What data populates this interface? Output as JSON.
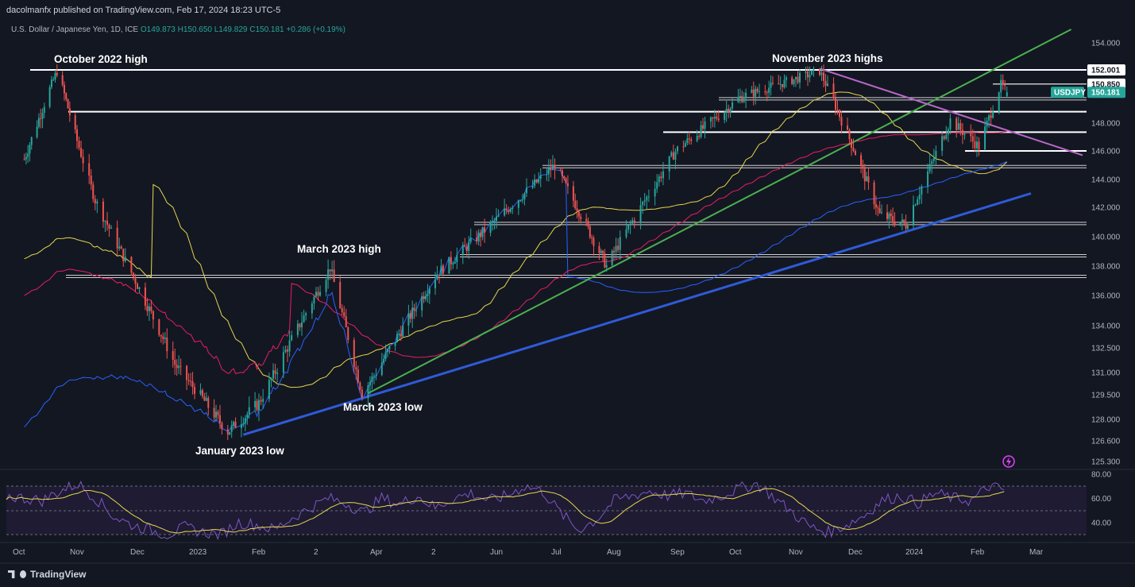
{
  "header": {
    "published": "dacolmanfx published on TradingView.com, Feb 17, 2024 18:23 UTC-5",
    "symbol_line": "U.S. Dollar / Japanese Yen, 1D, ICE",
    "ohlc": {
      "o": "O149.873",
      "h": "H150.650",
      "l": "L149.829",
      "c": "C150.181",
      "chg": "+0.286 (+0.19%)"
    }
  },
  "footer": {
    "brand": "TradingView"
  },
  "colors": {
    "background": "#131722",
    "up": "#26a69a",
    "down": "#ef5350",
    "ma_fast": "#e6d64c",
    "ma_mid": "#e91e63",
    "ma_slow": "#2962ff",
    "trend_green": "#4caf50",
    "trend_blue": "#2f5bd8",
    "trend_purple": "#ba68c8",
    "rsi": "#7e57c2",
    "rsi_ma": "#e6d64c"
  },
  "chart_data": [
    {
      "type": "candlestick",
      "title": "U.S. Dollar / Japanese Yen, 1D, ICE",
      "symbol": "USDJPY",
      "last_price": "150.181",
      "y_ticks": [
        "154.000",
        "152.000",
        "150.000",
        "148.000",
        "146.000",
        "144.000",
        "142.000",
        "140.000",
        "138.000",
        "136.000",
        "134.000",
        "132.500",
        "131.000",
        "129.500",
        "128.000",
        "126.600",
        "125.300"
      ],
      "ylim": [
        125.3,
        154.0
      ],
      "price_labels": [
        "152.001",
        "150.850"
      ],
      "x_ticks": [
        "Oct",
        "Nov",
        "Dec",
        "2023",
        "Feb",
        "2",
        "Apr",
        "2",
        "Jun",
        "Jul",
        "Aug",
        "Sep",
        "Oct",
        "Nov",
        "Dec",
        "2024",
        "Feb",
        "Mar"
      ],
      "annotations": [
        "October 2022 high",
        "November 2023 highs",
        "March 2023 high",
        "March 2023 low",
        "January 2023 low"
      ],
      "anchor_points": [
        {
          "date": "2022-10-01",
          "price": 144.7
        },
        {
          "date": "2022-10-21",
          "price": 151.9
        },
        {
          "date": "2022-11-10",
          "price": 142.5
        },
        {
          "date": "2022-12-20",
          "price": 131.5
        },
        {
          "date": "2023-01-16",
          "price": 127.2
        },
        {
          "date": "2023-02-01",
          "price": 129.0
        },
        {
          "date": "2023-03-08",
          "price": 137.9
        },
        {
          "date": "2023-03-24",
          "price": 129.6
        },
        {
          "date": "2023-05-02",
          "price": 137.5
        },
        {
          "date": "2023-05-30",
          "price": 140.9
        },
        {
          "date": "2023-06-30",
          "price": 145.0
        },
        {
          "date": "2023-07-28",
          "price": 138.0
        },
        {
          "date": "2023-08-31",
          "price": 146.0
        },
        {
          "date": "2023-10-03",
          "price": 149.8
        },
        {
          "date": "2023-11-13",
          "price": 151.9
        },
        {
          "date": "2023-12-14",
          "price": 141.5
        },
        {
          "date": "2023-12-28",
          "price": 140.8
        },
        {
          "date": "2024-01-19",
          "price": 148.2
        },
        {
          "date": "2024-02-02",
          "price": 146.3
        },
        {
          "date": "2024-02-13",
          "price": 150.8
        },
        {
          "date": "2024-02-16",
          "price": 150.181
        }
      ],
      "horizontal_levels": [
        152.001,
        148.8,
        147.35,
        146.0,
        144.9,
        140.9,
        138.7,
        137.3,
        149.7,
        150.85
      ],
      "moving_averages": [
        "yellow",
        "red",
        "blue"
      ],
      "trendlines": [
        "green ascending",
        "blue ascending",
        "purple descending"
      ]
    },
    {
      "type": "line",
      "title": "",
      "y_ticks": [
        "80.00",
        "60.00",
        "40.00"
      ],
      "ylim": [
        25,
        85
      ],
      "series": [
        {
          "values": [
            62,
            60,
            58,
            66,
            72,
            60,
            45,
            38,
            34,
            30,
            36,
            32,
            30,
            40,
            38,
            34,
            44,
            52,
            60,
            56,
            48,
            60,
            55,
            62,
            52,
            60,
            64,
            58,
            62,
            70,
            66,
            48,
            34,
            42,
            58,
            62,
            66,
            62,
            64,
            58,
            62,
            68,
            72,
            60,
            48,
            36,
            32,
            38,
            46,
            58,
            62,
            56,
            64,
            60,
            58,
            70,
            66
          ]
        }
      ]
    }
  ]
}
